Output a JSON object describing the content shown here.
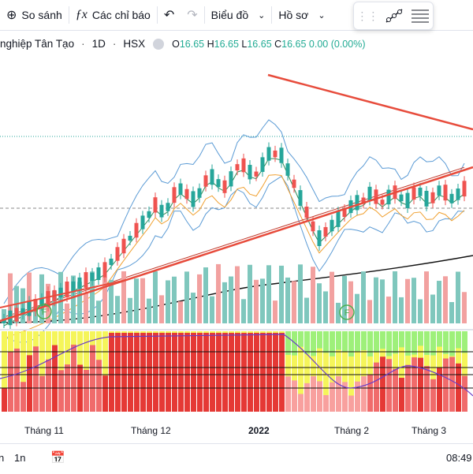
{
  "toolbar": {
    "compare_label": "So sánh",
    "indicators_label": "Các chỉ báo",
    "chart_type_label": "Biểu đồ",
    "profile_label": "Hồ sơ"
  },
  "legend": {
    "symbol_name": "nghiệp Tân Tạo",
    "interval": "1D",
    "exchange": "HSX",
    "o_key": "O",
    "o_val": "16.65",
    "h_key": "H",
    "h_val": "16.65",
    "l_key": "L",
    "l_val": "16.65",
    "c_key": "C",
    "c_val": "16.65",
    "change": "0.00 (0.00%)"
  },
  "time_axis": {
    "labels": [
      "Tháng 11",
      "Tháng 12",
      "2022",
      "Tháng 2",
      "Tháng 3"
    ]
  },
  "bottom_bar": {
    "range_a": "n",
    "range_b": "1n",
    "clock": "08:49"
  },
  "colors": {
    "up": "#26a69a",
    "down": "#ef5350",
    "trendline": "#e74c3c",
    "bollinger": "#5b9bd5"
  },
  "indicator_markers": [
    "F",
    "F"
  ]
}
